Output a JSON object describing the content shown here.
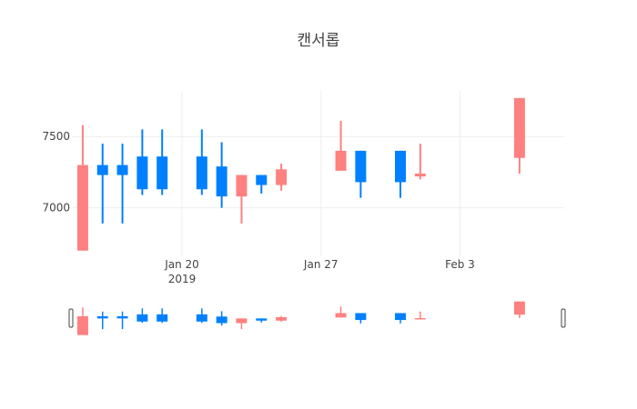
{
  "chart_data": {
    "type": "candlestick",
    "title": "캔서롭",
    "xlabel": "",
    "ylabel": "",
    "x_ticks": [
      {
        "date": "2019-01-20",
        "label": "Jan 20",
        "sublabel": "2019"
      },
      {
        "date": "2019-01-27",
        "label": "Jan 27",
        "sublabel": ""
      },
      {
        "date": "2019-02-03",
        "label": "Feb 3",
        "sublabel": ""
      }
    ],
    "y_ticks": [
      7000,
      7500
    ],
    "xlim": [
      "2019-01-14T12:00",
      "2019-02-08T06:00"
    ],
    "ylim": [
      6660,
      7820
    ],
    "grid": true,
    "rangeslider": true,
    "colors": {
      "increasing": "#ff8080",
      "decreasing": "#0080ff"
    },
    "candles": [
      {
        "date": "2019-01-15",
        "open": 6700,
        "high": 7580,
        "low": 6700,
        "close": 7300
      },
      {
        "date": "2019-01-16",
        "open": 7300,
        "high": 7450,
        "low": 6890,
        "close": 7230
      },
      {
        "date": "2019-01-17",
        "open": 7300,
        "high": 7450,
        "low": 6890,
        "close": 7230
      },
      {
        "date": "2019-01-18",
        "open": 7360,
        "high": 7550,
        "low": 7090,
        "close": 7130
      },
      {
        "date": "2019-01-19",
        "open": 7360,
        "high": 7550,
        "low": 7090,
        "close": 7130
      },
      {
        "date": "2019-01-21",
        "open": 7360,
        "high": 7550,
        "low": 7090,
        "close": 7130
      },
      {
        "date": "2019-01-22",
        "open": 7290,
        "high": 7460,
        "low": 7000,
        "close": 7080
      },
      {
        "date": "2019-01-23",
        "open": 7080,
        "high": 7230,
        "low": 6890,
        "close": 7230
      },
      {
        "date": "2019-01-24",
        "open": 7230,
        "high": 7230,
        "low": 7100,
        "close": 7160
      },
      {
        "date": "2019-01-25",
        "open": 7160,
        "high": 7310,
        "low": 7120,
        "close": 7270
      },
      {
        "date": "2019-01-28",
        "open": 7260,
        "high": 7610,
        "low": 7260,
        "close": 7400
      },
      {
        "date": "2019-01-29",
        "open": 7400,
        "high": 7400,
        "low": 7070,
        "close": 7180
      },
      {
        "date": "2019-01-31",
        "open": 7400,
        "high": 7400,
        "low": 7070,
        "close": 7180
      },
      {
        "date": "2019-02-01",
        "open": 7220,
        "high": 7450,
        "low": 7200,
        "close": 7240
      },
      {
        "date": "2019-02-06",
        "open": 7350,
        "high": 7770,
        "low": 7240,
        "close": 7770
      }
    ]
  }
}
